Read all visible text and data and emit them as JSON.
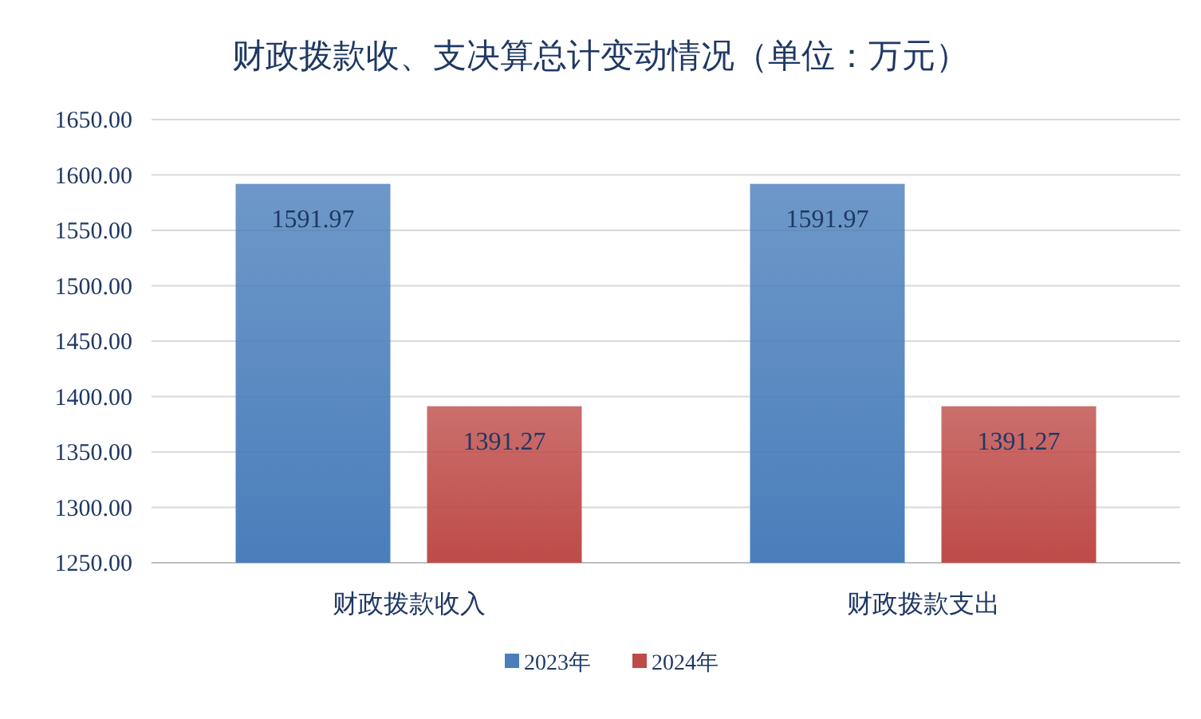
{
  "chart_data": {
    "type": "bar",
    "title": "财政拨款收、支决算总计变动情况（单位：万元）",
    "categories": [
      "财政拨款收入",
      "财政拨款支出"
    ],
    "series": [
      {
        "name": "2023年",
        "color": "#4a7ebb",
        "values": [
          1591.97,
          1591.97
        ]
      },
      {
        "name": "2024年",
        "color": "#be4b48",
        "values": [
          1391.27,
          1391.27
        ]
      }
    ],
    "ylim": [
      1250,
      1650
    ],
    "yticks": [
      {
        "value": 1250,
        "label": "1250.00"
      },
      {
        "value": 1300,
        "label": "1300.00"
      },
      {
        "value": 1350,
        "label": "1350.00"
      },
      {
        "value": 1400,
        "label": "1400.00"
      },
      {
        "value": 1450,
        "label": "1450.00"
      },
      {
        "value": 1500,
        "label": "1500.00"
      },
      {
        "value": 1550,
        "label": "1550.00"
      },
      {
        "value": 1600,
        "label": "1600.00"
      },
      {
        "value": 1650,
        "label": "1650.00"
      }
    ],
    "grid": "y",
    "legend": "bottom",
    "data_labels": true
  }
}
